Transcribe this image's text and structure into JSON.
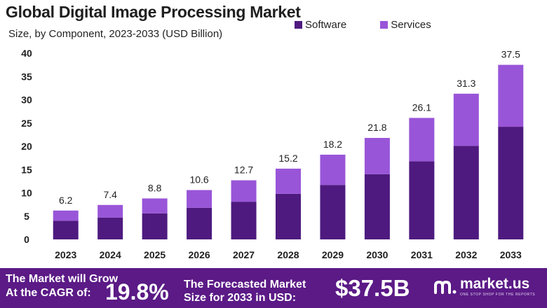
{
  "title": "Global Digital Image Processing Market",
  "subtitle": "Size, by Component, 2023-2033 (USD Billion)",
  "colors": {
    "software": "#4e1a7f",
    "services": "#9955d8",
    "footer": "#5b1a86"
  },
  "chart_data": {
    "type": "bar",
    "stacked": true,
    "categories": [
      "2023",
      "2024",
      "2025",
      "2026",
      "2027",
      "2028",
      "2029",
      "2030",
      "2031",
      "2032",
      "2033"
    ],
    "series": [
      {
        "name": "Software",
        "values": [
          4.0,
          4.7,
          5.6,
          6.8,
          8.1,
          9.8,
          11.7,
          14.0,
          16.8,
          20.1,
          24.2
        ]
      },
      {
        "name": "Services",
        "values": [
          2.2,
          2.7,
          3.2,
          3.8,
          4.6,
          5.4,
          6.5,
          7.8,
          9.3,
          11.2,
          13.3
        ]
      }
    ],
    "totals": [
      "6.2",
      "7.4",
      "8.8",
      "10.6",
      "12.7",
      "15.2",
      "18.2",
      "21.8",
      "26.1",
      "31.3",
      "37.5"
    ],
    "yticks": [
      0,
      5,
      10,
      15,
      20,
      25,
      30,
      35,
      40
    ],
    "ylim": [
      0,
      40
    ],
    "grid": false,
    "legend_position": "top-right"
  },
  "footer": {
    "cagr_line1": "The Market will Grow",
    "cagr_line2": "At the CAGR of:",
    "cagr_value": "19.8%",
    "forecast_line1": "The Forecasted Market",
    "forecast_line2": "Size for 2033 in USD:",
    "forecast_value": "$37.5B",
    "brand_name": "market.us",
    "brand_tagline": "ONE STOP SHOP FOR THE REPORTS",
    "brand_icon": "market-us-logo-icon"
  }
}
